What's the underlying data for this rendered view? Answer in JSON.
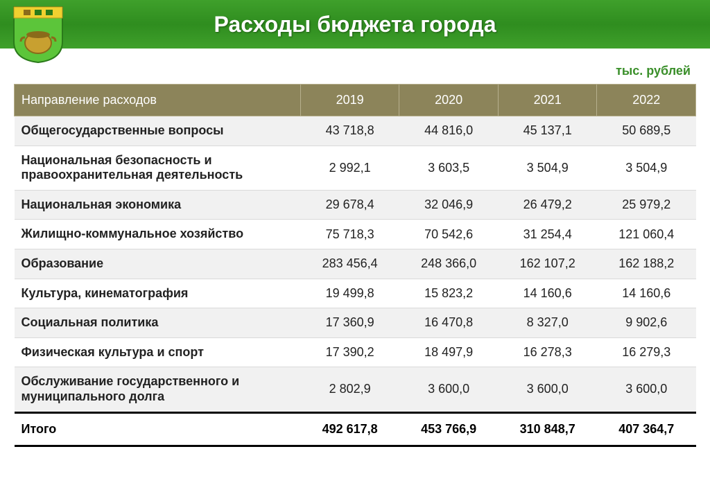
{
  "header": {
    "title": "Расходы бюджета города"
  },
  "unit_label": "тыс. рублей",
  "table": {
    "columns": [
      "Направление расходов",
      "2019",
      "2020",
      "2021",
      "2022"
    ],
    "rows": [
      {
        "label": "Общегосударственные вопросы",
        "values": [
          "43 718,8",
          "44 816,0",
          "45 137,1",
          "50 689,5"
        ]
      },
      {
        "label": "Национальная безопасность и правоохранительная деятельность",
        "values": [
          "2 992,1",
          "3 603,5",
          "3 504,9",
          "3 504,9"
        ]
      },
      {
        "label": "Национальная экономика",
        "values": [
          "29 678,4",
          "32 046,9",
          "26 479,2",
          "25 979,2"
        ]
      },
      {
        "label": "Жилищно-коммунальное хозяйство",
        "values": [
          "75 718,3",
          "70 542,6",
          "31 254,4",
          "121 060,4"
        ]
      },
      {
        "label": "Образование",
        "values": [
          "283 456,4",
          "248 366,0",
          "162 107,2",
          "162 188,2"
        ]
      },
      {
        "label": "Культура, кинематография",
        "values": [
          "19 499,8",
          "15 823,2",
          "14 160,6",
          "14 160,6"
        ]
      },
      {
        "label": "Социальная политика",
        "values": [
          "17 360,9",
          "16 470,8",
          "8 327,0",
          "9 902,6"
        ]
      },
      {
        "label": "Физическая культура и спорт",
        "values": [
          "17 390,2",
          "18 497,9",
          "16 278,3",
          "16 279,3"
        ]
      },
      {
        "label": "Обслуживание государственного и муниципального долга",
        "values": [
          "2 802,9",
          "3 600,0",
          "3 600,0",
          "3 600,0"
        ]
      }
    ],
    "total": {
      "label": "Итого",
      "values": [
        "492 617,8",
        "453 766,9",
        "310 848,7",
        "407 364,7"
      ]
    }
  },
  "styling": {
    "header_gradient_top": "#3fa02b",
    "header_gradient_mid": "#2f8d1f",
    "thead_bg": "#8c845a",
    "thead_border": "#b7b08e",
    "row_alt_bg": "#f1f1f1",
    "row_border": "#d9d9d9",
    "unit_color": "#3a8f2a",
    "title_color": "#ffffff",
    "title_fontsize": 32,
    "body_fontsize": 18,
    "crest_colors": {
      "shield": "#5cc53a",
      "shield_dark": "#2a7a1a",
      "top_band": "#f0d030",
      "pot": "#c8a030",
      "pot_dark": "#8a6a1a"
    }
  }
}
